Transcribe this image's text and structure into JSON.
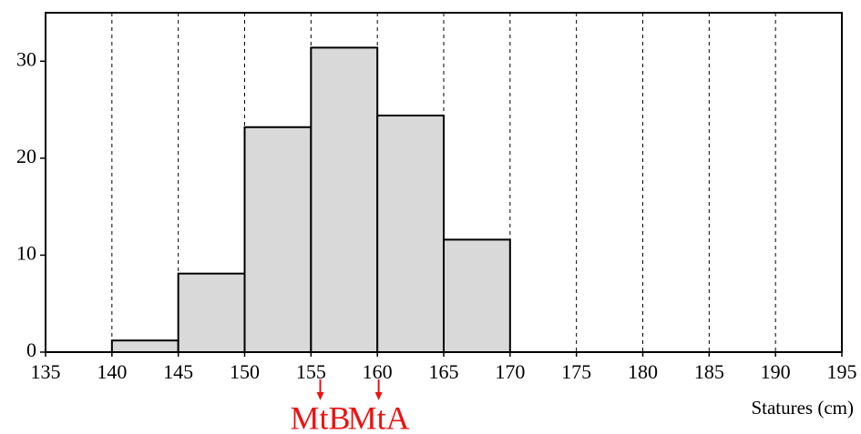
{
  "chart_data": {
    "type": "histogram",
    "x_label": "Statures (cm)",
    "bins": [
      140,
      145,
      150,
      155,
      160,
      165,
      170
    ],
    "values": [
      1.2,
      8.1,
      23.2,
      31.4,
      24.4,
      11.6
    ],
    "color": "#d9d9d9",
    "xlim": [
      135,
      195
    ],
    "xticks": [
      135,
      140,
      145,
      150,
      155,
      160,
      165,
      170,
      175,
      180,
      185,
      190,
      195
    ],
    "ylim": [
      0,
      35
    ],
    "yticks": [
      0,
      10,
      20,
      30
    ],
    "grid": true,
    "annotations": [
      {
        "text": "MtB",
        "x": 155.7,
        "color": "#ee1111"
      },
      {
        "text": "MtA",
        "x": 160.1,
        "color": "#ee1111"
      }
    ]
  }
}
